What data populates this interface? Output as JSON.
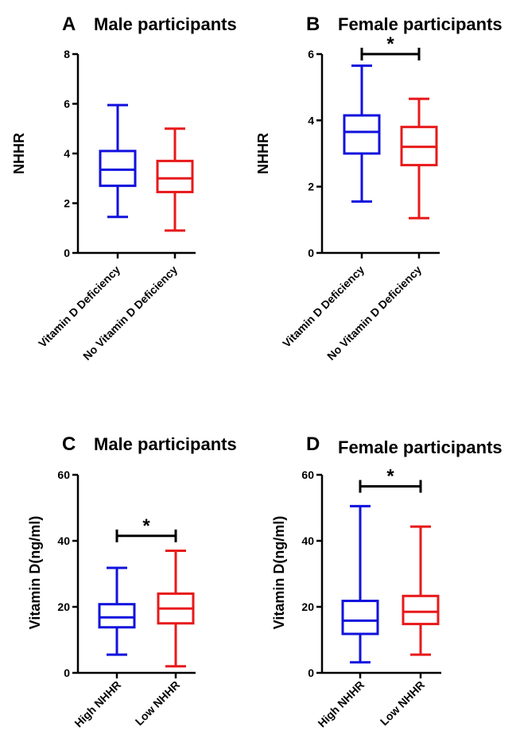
{
  "chart_data": [
    {
      "type": "boxplot",
      "panel": "A",
      "title": "Male participants",
      "ylabel": "NHHR",
      "ylim": [
        0,
        8
      ],
      "yticks": [
        0,
        2,
        4,
        6,
        8
      ],
      "categories": [
        "Vitamin D Deficiency",
        "No Vitamin D Deficiency"
      ],
      "colors": [
        "#1111dd",
        "#e8191a"
      ],
      "boxes": [
        {
          "min": 1.45,
          "q1": 2.7,
          "median": 3.35,
          "q3": 4.1,
          "max": 5.95
        },
        {
          "min": 0.9,
          "q1": 2.45,
          "median": 3.0,
          "q3": 3.7,
          "max": 5.0
        }
      ],
      "significance": null
    },
    {
      "type": "boxplot",
      "panel": "B",
      "title": "Female participants",
      "ylabel": "NHHR",
      "ylim": [
        0,
        6
      ],
      "yticks": [
        0,
        2,
        4,
        6
      ],
      "categories": [
        "Vitamin D Deficiency",
        "No Vitamin D Deficiency"
      ],
      "colors": [
        "#1111dd",
        "#e8191a"
      ],
      "boxes": [
        {
          "min": 1.55,
          "q1": 3.0,
          "median": 3.65,
          "q3": 4.15,
          "max": 5.65
        },
        {
          "min": 1.05,
          "q1": 2.65,
          "median": 3.2,
          "q3": 3.8,
          "max": 4.65
        }
      ],
      "significance": {
        "label": "*",
        "y": 6.0
      }
    },
    {
      "type": "boxplot",
      "panel": "C",
      "title": "Male participants",
      "ylabel": "Vitamin D(ng/ml)",
      "ylim": [
        0,
        60
      ],
      "yticks": [
        0,
        20,
        40,
        60
      ],
      "categories": [
        "High NHHR",
        "Low NHHR"
      ],
      "colors": [
        "#1111dd",
        "#e8191a"
      ],
      "boxes": [
        {
          "min": 5.5,
          "q1": 13.8,
          "median": 16.8,
          "q3": 20.8,
          "max": 31.8
        },
        {
          "min": 2.0,
          "q1": 15.0,
          "median": 19.5,
          "q3": 24.0,
          "max": 37.0
        }
      ],
      "significance": {
        "label": "*",
        "y": 41.5
      }
    },
    {
      "type": "boxplot",
      "panel": "D",
      "title": "Female participants",
      "ylabel": "Vitamin D(ng/ml)",
      "ylim": [
        0,
        60
      ],
      "yticks": [
        0,
        20,
        40,
        60
      ],
      "categories": [
        "High NHHR",
        "Low NHHR"
      ],
      "colors": [
        "#1111dd",
        "#e8191a"
      ],
      "boxes": [
        {
          "min": 3.2,
          "q1": 11.8,
          "median": 15.8,
          "q3": 21.8,
          "max": 50.5
        },
        {
          "min": 5.5,
          "q1": 14.8,
          "median": 18.5,
          "q3": 23.3,
          "max": 44.3
        }
      ],
      "significance": {
        "label": "*",
        "y": 56.5
      }
    }
  ]
}
